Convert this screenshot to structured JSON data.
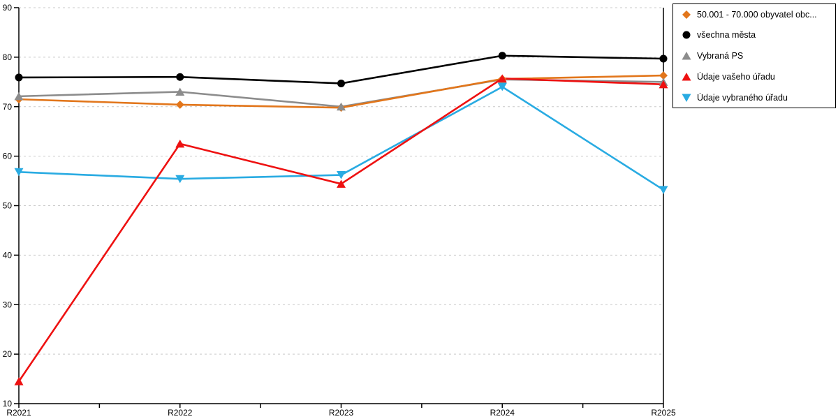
{
  "chart_data": {
    "type": "line",
    "categories": [
      "R2021",
      "R2022",
      "R2023",
      "R2024",
      "R2025"
    ],
    "series": [
      {
        "name": "50.001 - 70.000 obyvatel obc...",
        "marker": "diamond",
        "color": "#E2761B",
        "values": [
          71.5,
          70.4,
          69.8,
          75.6,
          76.3
        ]
      },
      {
        "name": "všechna města",
        "marker": "circle",
        "color": "#000000",
        "values": [
          75.9,
          76.0,
          74.7,
          80.3,
          79.7
        ]
      },
      {
        "name": "Vybraná PS",
        "marker": "triangle-up",
        "color": "#8C8C8C",
        "values": [
          72.1,
          73.0,
          70.0,
          75.5,
          75.0
        ]
      },
      {
        "name": "Údaje vašeho úřadu",
        "marker": "triangle-up",
        "color": "#EE1111",
        "values": [
          14.5,
          62.5,
          54.4,
          75.7,
          74.5
        ]
      },
      {
        "name": "Údaje vybraného úřadu",
        "marker": "triangle-down",
        "color": "#29ABE2",
        "values": [
          56.8,
          55.4,
          56.2,
          74.0,
          53.2
        ]
      }
    ],
    "title": "",
    "xlabel": "",
    "ylabel": "",
    "ylim": [
      10,
      90
    ],
    "ytick_step": 10,
    "grid": "horizontal-dashed",
    "gridline_color": "#C9C9C9",
    "axis_color": "#000000",
    "legend_position": "top-right"
  },
  "axes": {
    "y_tick_labels": [
      "10",
      "20",
      "30",
      "40",
      "50",
      "60",
      "70",
      "80",
      "90"
    ],
    "x_tick_labels": [
      "R2021",
      "R2022",
      "R2023",
      "R2024",
      "R2025"
    ]
  }
}
